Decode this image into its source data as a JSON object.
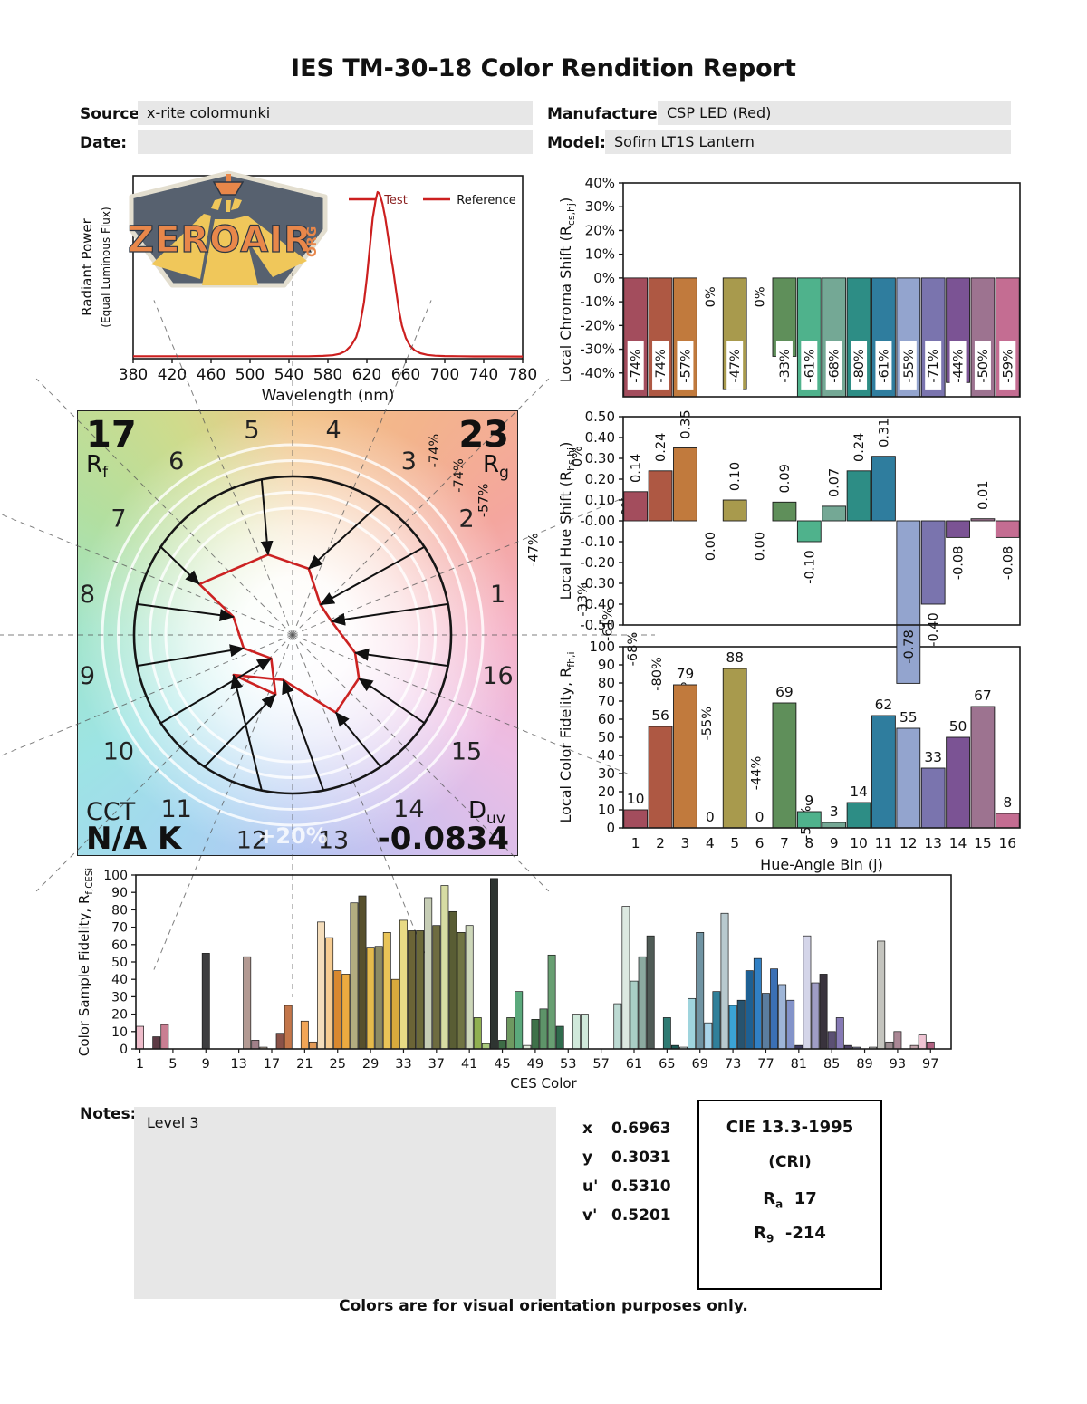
{
  "report": {
    "title": "IES TM-30-18 Color Rendition Report",
    "fields": {
      "source_label": "Source:",
      "source": "x-rite colormunki",
      "manufacturer_label": "Manufacturer:",
      "manufacturer": "CSP LED (Red)",
      "date_label": "Date:",
      "date": "",
      "model_label": "Model:",
      "model": "Sofirn LT1S Lantern"
    },
    "notes_label": "Notes:",
    "notes": "Level 3",
    "footer": "Colors are for visual orientation purposes only.",
    "chromaticity": {
      "x_label": "x",
      "x": "0.6963",
      "y_label": "y",
      "y": "0.3031",
      "u_label": "u'",
      "u": "0.5310",
      "v_label": "v'",
      "v": "0.5201"
    },
    "cie_box": {
      "title": "CIE 13.3-1995",
      "subtitle": "(CRI)",
      "ra_pre": "R",
      "ra_sub": "a",
      "ra_value": "17",
      "r9_pre": "R",
      "r9_sub": "9",
      "r9_value": "-214"
    }
  },
  "logo": {
    "brand": "ZEROAIR",
    "tld": "ORG"
  },
  "cvg_text": {
    "rf_value": "17",
    "rf_pre": "R",
    "rf_sub": "f",
    "rg_value": "23",
    "rg_pre": "R",
    "rg_sub": "g",
    "cct_label": "CCT",
    "cct_value": "N/A K",
    "duv_pre": "D",
    "duv_sub": "uv",
    "duv_value": "-0.0834",
    "ring_label": "+20%"
  },
  "bin_colors": [
    "#a34d5d",
    "#ae5843",
    "#c17a3d",
    "#bfa24a",
    "#a89a4d",
    "#8aad6a",
    "#5f8f5a",
    "#4fb28c",
    "#74a895",
    "#2d8d85",
    "#2f7d9e",
    "#93a4ce",
    "#7a74ae",
    "#7b5394",
    "#9d7390",
    "#c46d92"
  ],
  "accent_red": "#cc1f1f",
  "chart_data": [
    {
      "id": "spd",
      "type": "line",
      "ylabel_lines": [
        "Radiant Power",
        "(Equal Luminous Flux)"
      ],
      "xlabel": "Wavelength (nm)",
      "xlim": [
        380,
        780
      ],
      "xticks": [
        380,
        420,
        460,
        500,
        540,
        580,
        620,
        660,
        700,
        740,
        780
      ],
      "legend": [
        "Test",
        "Reference"
      ],
      "x": [
        380,
        560,
        575,
        585,
        592,
        598,
        604,
        609,
        613,
        617,
        620,
        623,
        626,
        629,
        631,
        633,
        636,
        639,
        642,
        645,
        647,
        650,
        653,
        656,
        660,
        664,
        669,
        675,
        682,
        690,
        700,
        715,
        730,
        750,
        780
      ],
      "y": [
        0.004,
        0.004,
        0.006,
        0.01,
        0.018,
        0.035,
        0.07,
        0.12,
        0.2,
        0.33,
        0.48,
        0.66,
        0.84,
        0.95,
        1.0,
        0.99,
        0.93,
        0.84,
        0.72,
        0.6,
        0.53,
        0.4,
        0.28,
        0.19,
        0.115,
        0.07,
        0.04,
        0.022,
        0.012,
        0.007,
        0.005,
        0.004,
        0.003,
        0.003,
        0.002
      ]
    },
    {
      "id": "chroma_shift",
      "type": "bar",
      "ylabel": {
        "pre": "Local Chroma Shift (R",
        "sub": "cs,hj",
        "post": ")"
      },
      "ylim": [
        -50,
        40
      ],
      "ytick_step": 10,
      "ytick_min": -40,
      "ytick_max": 40,
      "ytick_suffix": "%",
      "values": [
        -74,
        -74,
        -57,
        0,
        -47,
        0,
        -33,
        -61,
        -68,
        -80,
        -61,
        -55,
        -71,
        -44,
        -50,
        -59
      ],
      "labels": [
        "-74%",
        "-74%",
        "-57%",
        "0%",
        "-47%",
        "0%",
        "-33%",
        "-61%",
        "-68%",
        "-80%",
        "-61%",
        "-55%",
        "-71%",
        "-44%",
        "-50%",
        "-59%"
      ]
    },
    {
      "id": "hue_shift",
      "type": "bar",
      "ylabel": {
        "pre": "Local Hue Shift (R",
        "sub": "hs,hj",
        "post": ")"
      },
      "ylim": [
        -0.5,
        0.5
      ],
      "ytick_step": 0.1,
      "ytick_min": -0.5,
      "ytick_max": 0.5,
      "values": [
        0.14,
        0.24,
        0.35,
        0,
        0.1,
        0,
        0.09,
        -0.1,
        0.07,
        0.24,
        0.31,
        -0.78,
        -0.4,
        -0.08,
        0.01,
        -0.08
      ],
      "labels": [
        "0.14",
        "0.24",
        "0.35",
        "0.00",
        "0.10",
        "0.00",
        "0.09",
        "-0.10",
        "0.07",
        "0.24",
        "0.31",
        "-0.78",
        "-0.40",
        "-0.08",
        "0.01",
        "-0.08"
      ]
    },
    {
      "id": "local_fidelity",
      "type": "bar",
      "ylabel": {
        "pre": "Local Color Fidelity, R",
        "sub": "fh,i",
        "post": ""
      },
      "xlabel": "Hue-Angle Bin (j)",
      "ylim": [
        0,
        100
      ],
      "ytick_step": 10,
      "categories": [
        1,
        2,
        3,
        4,
        5,
        6,
        7,
        8,
        9,
        10,
        11,
        12,
        13,
        14,
        15,
        16
      ],
      "values": [
        10,
        56,
        79,
        0,
        88,
        0,
        69,
        9,
        3,
        14,
        62,
        55,
        33,
        50,
        67,
        8
      ]
    },
    {
      "id": "ces_fidelity",
      "type": "bar",
      "ylabel": {
        "pre": "Color Sample Fidelity, R",
        "sub": "f,CESi",
        "post": ""
      },
      "xlabel": "CES Color",
      "ylim": [
        0,
        100
      ],
      "ytick_step": 10,
      "xticks": [
        1,
        5,
        9,
        13,
        17,
        21,
        25,
        29,
        33,
        37,
        41,
        45,
        49,
        53,
        57,
        61,
        65,
        69,
        73,
        77,
        81,
        85,
        89,
        93,
        97
      ],
      "values": [
        13,
        0,
        7,
        14,
        0,
        0,
        0,
        0,
        55,
        0,
        0,
        0,
        0,
        53,
        5,
        1,
        0,
        9,
        25,
        0,
        16,
        4,
        73,
        64,
        45,
        43,
        84,
        88,
        58,
        59,
        67,
        40,
        74,
        68,
        68,
        87,
        71,
        94,
        79,
        67,
        71,
        18,
        3,
        98,
        5,
        18,
        33,
        2,
        17,
        23,
        54,
        13,
        0,
        20,
        20,
        0,
        0,
        0,
        26,
        82,
        39,
        53,
        65,
        0,
        18,
        2,
        1,
        29,
        67,
        15,
        33,
        78,
        25,
        28,
        45,
        52,
        32,
        46,
        37,
        28,
        2,
        65,
        38,
        43,
        10,
        18,
        2,
        1,
        0,
        1,
        62,
        4,
        10,
        0,
        2,
        8,
        4,
        0,
        0
      ],
      "colors": [
        "#eebcca",
        "#cccccc",
        "#5c3a44",
        "#c97e92",
        "#cccccc",
        "#cccccc",
        "#cccccc",
        "#cccccc",
        "#3d3d3f",
        "#cccccc",
        "#cccccc",
        "#cccccc",
        "#cccccc",
        "#b39a93",
        "#a08089",
        "#c9b8a8",
        "#cccccc",
        "#8a5248",
        "#c3764a",
        "#cccccc",
        "#f2a556",
        "#e29a58",
        "#f4ddbb",
        "#f6cc92",
        "#d9882f",
        "#ecaa40",
        "#b3ad80",
        "#57502d",
        "#e5ba4c",
        "#8d8a62",
        "#e9c457",
        "#d8aa3d",
        "#e9db85",
        "#6b6436",
        "#6b6939",
        "#c6cdb5",
        "#6e6c40",
        "#d7dca3",
        "#595d34",
        "#707443",
        "#cdd7b9",
        "#90b050",
        "#aac97d",
        "#2e3431",
        "#3d6c46",
        "#6e9961",
        "#5ba97c",
        "#e0ebdc",
        "#3f714a",
        "#5e9469",
        "#689f72",
        "#306b4d",
        "#cccccc",
        "#d0e9db",
        "#d0e9db",
        "#cccccc",
        "#cccccc",
        "#cccccc",
        "#bddad3",
        "#dde9e1",
        "#a9cec5",
        "#8caaa0",
        "#4f5b56",
        "#cccccc",
        "#2f7b73",
        "#1e5b56",
        "#e0f1ed",
        "#9fd4dd",
        "#7094a3",
        "#a8d4e9",
        "#30809a",
        "#b8c9ce",
        "#3ba4d5",
        "#27536f",
        "#1e6093",
        "#3080c5",
        "#5b7d9f",
        "#3b70b5",
        "#9eb5d7",
        "#8393c9",
        "#3e3b5f",
        "#d4d5e9",
        "#9f9dc5",
        "#39333d",
        "#5b5073",
        "#867ab5",
        "#4b4063",
        "#8888aa",
        "#cccccc",
        "#c8c8c8",
        "#c4c4be",
        "#9b8b8f",
        "#aa8795",
        "#cccccc",
        "#c6a8ae",
        "#efc4d3",
        "#b16181",
        "#cccccc",
        "#cccccc"
      ]
    },
    {
      "id": "cvg",
      "type": "vector_graphic",
      "rf": 17,
      "rg": 23,
      "cct": "N/A",
      "duv": -0.0834,
      "bin_labels": [
        1,
        2,
        3,
        4,
        5,
        6,
        7,
        8,
        9,
        10,
        11,
        12,
        13,
        14,
        15,
        16
      ],
      "rcs_pct": [
        -74,
        -74,
        -57,
        0,
        -47,
        0,
        -33,
        -61,
        -68,
        -80,
        -61,
        -55,
        -71,
        -44,
        -50,
        -59
      ],
      "rhs": [
        0.14,
        0.24,
        0.35,
        0,
        0.1,
        0,
        0.09,
        -0.1,
        0.07,
        0.24,
        0.31,
        -0.78,
        -0.4,
        -0.08,
        0.01,
        -0.08
      ],
      "active_bins": [
        1,
        2,
        3,
        5,
        7,
        8,
        9,
        10,
        11,
        12,
        13,
        14,
        15,
        16
      ]
    }
  ]
}
